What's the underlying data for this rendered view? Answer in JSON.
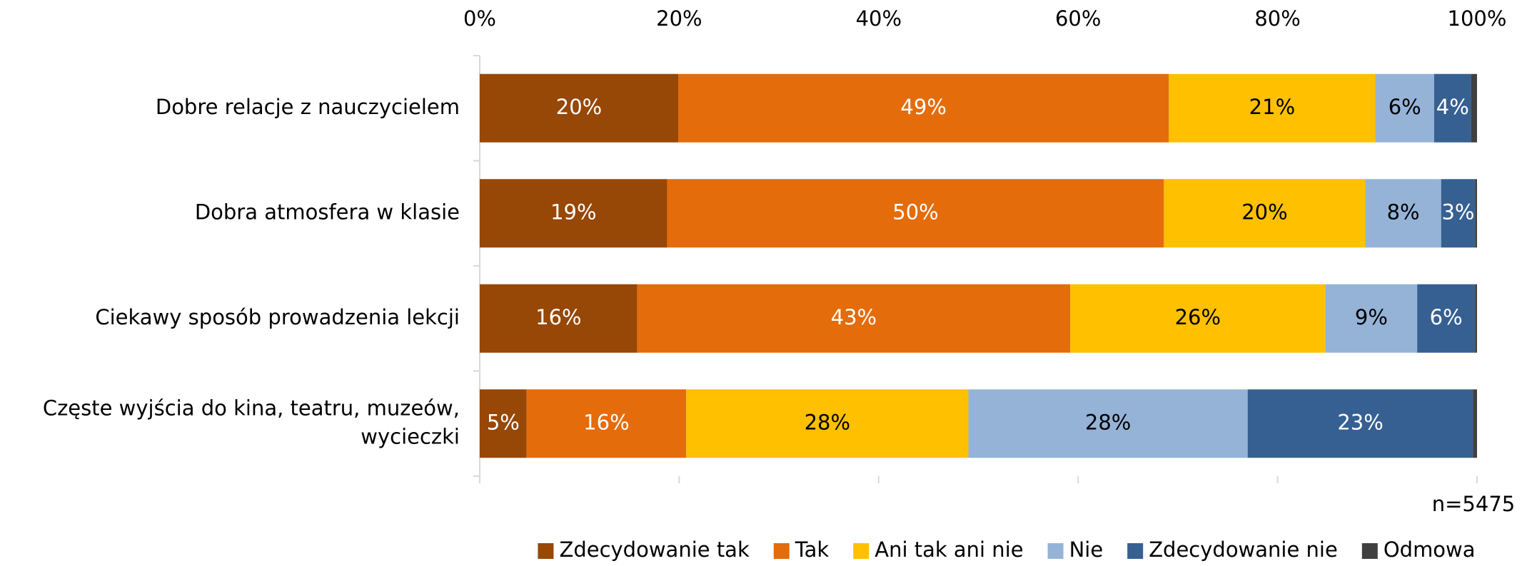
{
  "chart_data": {
    "type": "stacked_barh",
    "categories": [
      "Dobre relacje z nauczycielem",
      "Dobra atmosfera w klasie",
      "Ciekawy sposób prowadzenia lekcji",
      "Częste wyjścia do kina, teatru, muzeów, wycieczki"
    ],
    "series": [
      {
        "name": "Zdecydowanie tak",
        "color": "#974706",
        "values": [
          19.9,
          18.8,
          15.8,
          4.7
        ],
        "value_labels": [
          "20%",
          "19%",
          "16%",
          "5%"
        ]
      },
      {
        "name": "Tak",
        "color": "#e46c0a",
        "values": [
          49.2,
          49.8,
          43.4,
          16.0
        ],
        "value_labels": [
          "49%",
          "50%",
          "43%",
          "16%"
        ]
      },
      {
        "name": "Ani tak ani nie",
        "color": "#ffc000",
        "values": [
          20.7,
          20.2,
          25.6,
          28.3
        ],
        "value_labels": [
          "21%",
          "20%",
          "26%",
          "28%"
        ]
      },
      {
        "name": "Nie",
        "color": "#95b3d7",
        "values": [
          5.9,
          7.6,
          9.2,
          28.0
        ],
        "value_labels": [
          "6%",
          "8%",
          "9%",
          "28%"
        ]
      },
      {
        "name": "Zdecydowanie nie",
        "color": "#366092",
        "values": [
          3.7,
          3.4,
          5.8,
          22.6
        ],
        "value_labels": [
          "4%",
          "3%",
          "6%",
          "23%"
        ]
      },
      {
        "name": "Odmowa",
        "color": "#404040",
        "values": [
          0.6,
          0.2,
          0.2,
          0.4
        ]
      }
    ],
    "xlim": [
      0,
      100
    ],
    "xticks": [
      {
        "value": 0,
        "label": "0%"
      },
      {
        "value": 20,
        "label": "20%"
      },
      {
        "value": 40,
        "label": "40%"
      },
      {
        "value": 60,
        "label": "60%"
      },
      {
        "value": 80,
        "label": "80%"
      },
      {
        "value": 100,
        "label": "100%"
      }
    ],
    "annotation": "n=5475",
    "legend": "bottom",
    "grid": false
  }
}
